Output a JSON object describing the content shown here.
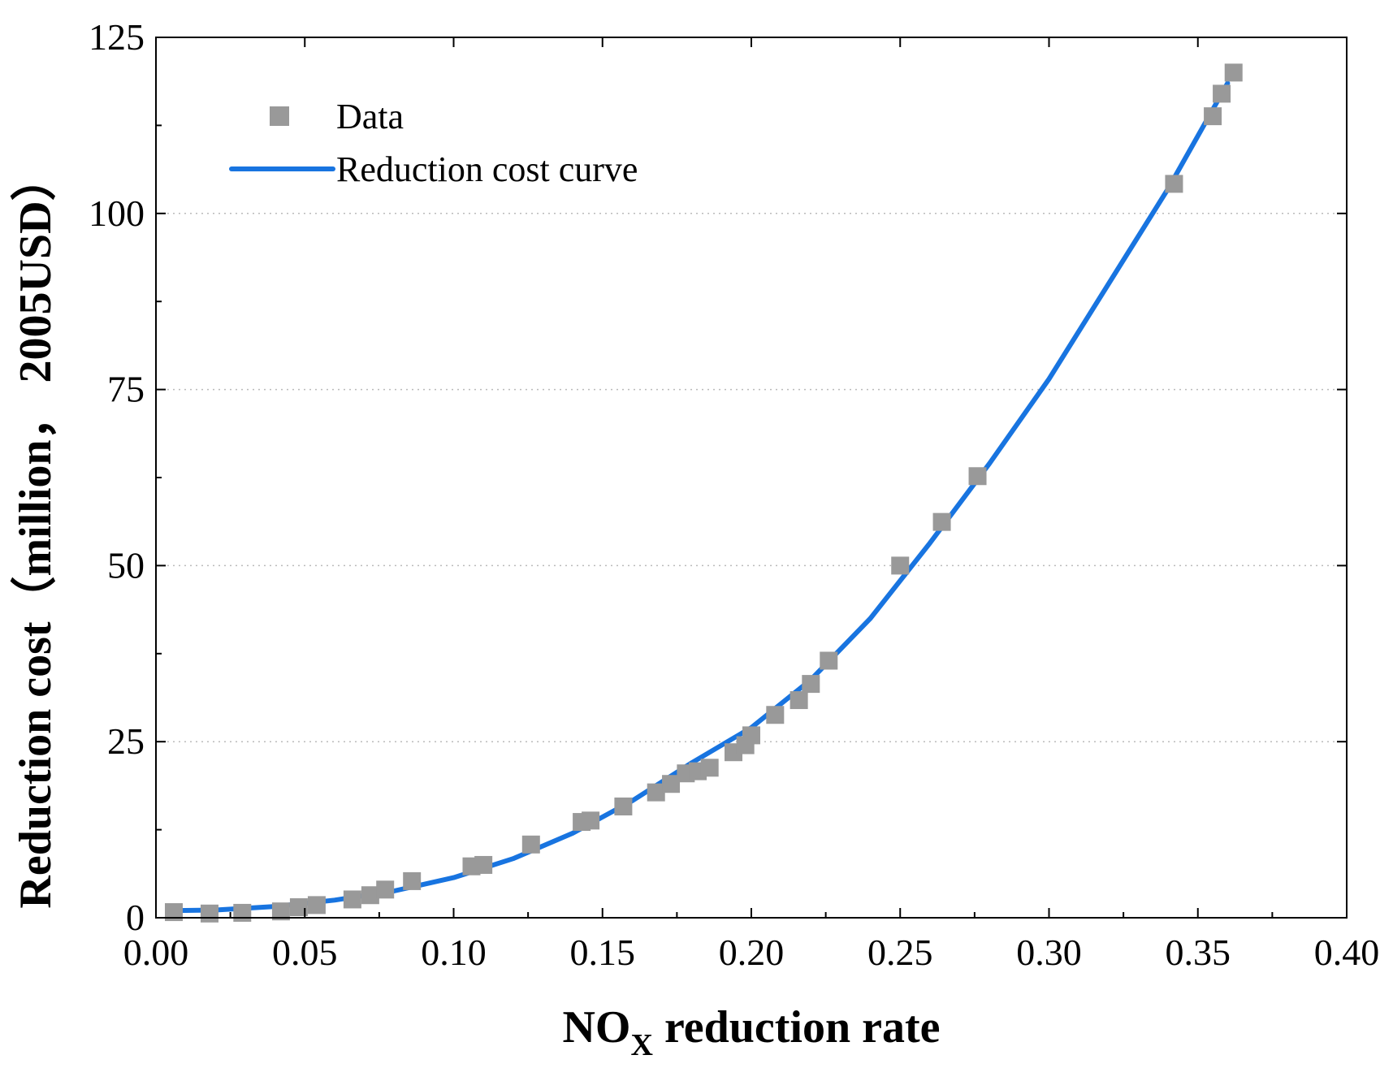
{
  "chart_data": {
    "type": "scatter",
    "title": "",
    "xlabel_main": "NO",
    "xlabel_sub": "X",
    "xlabel_rest": " reduction rate",
    "ylabel": "Reduction cost（million， 2005USD）",
    "xlim": [
      0.0,
      0.4
    ],
    "ylim": [
      0,
      125
    ],
    "xticks": [
      0.0,
      0.05,
      0.1,
      0.15,
      0.2,
      0.25,
      0.3,
      0.35,
      0.4
    ],
    "xtick_labels": [
      "0.00",
      "0.05",
      "0.10",
      "0.15",
      "0.20",
      "0.25",
      "0.30",
      "0.35",
      "0.40"
    ],
    "yticks": [
      0,
      25,
      50,
      75,
      100,
      125
    ],
    "ytick_labels": [
      "0",
      "25",
      "50",
      "75",
      "100",
      "125"
    ],
    "grid": "horizontal dotted",
    "legend_position": "top-left",
    "colors": {
      "data": "#999999",
      "curve": "#1874e0",
      "grid": "#bbbbbb"
    },
    "series": [
      {
        "name": "Data",
        "kind": "markers",
        "points": [
          [
            0.006,
            0.8
          ],
          [
            0.018,
            0.6
          ],
          [
            0.029,
            0.7
          ],
          [
            0.042,
            0.9
          ],
          [
            0.048,
            1.5
          ],
          [
            0.054,
            1.8
          ],
          [
            0.066,
            2.6
          ],
          [
            0.072,
            3.2
          ],
          [
            0.077,
            4.0
          ],
          [
            0.086,
            5.2
          ],
          [
            0.106,
            7.3
          ],
          [
            0.11,
            7.5
          ],
          [
            0.126,
            10.4
          ],
          [
            0.143,
            13.6
          ],
          [
            0.146,
            13.8
          ],
          [
            0.157,
            15.8
          ],
          [
            0.168,
            17.8
          ],
          [
            0.173,
            19.0
          ],
          [
            0.178,
            20.5
          ],
          [
            0.182,
            20.8
          ],
          [
            0.186,
            21.3
          ],
          [
            0.194,
            23.5
          ],
          [
            0.198,
            24.5
          ],
          [
            0.2,
            25.9
          ],
          [
            0.208,
            28.8
          ],
          [
            0.216,
            30.9
          ],
          [
            0.22,
            33.2
          ],
          [
            0.226,
            36.5
          ],
          [
            0.25,
            50.0
          ],
          [
            0.264,
            56.2
          ],
          [
            0.276,
            62.7
          ],
          [
            0.342,
            104.2
          ],
          [
            0.355,
            113.8
          ],
          [
            0.358,
            117.0
          ],
          [
            0.362,
            120.0
          ]
        ]
      },
      {
        "name": "Reduction cost curve",
        "kind": "line",
        "points": [
          [
            0.005,
            1.0
          ],
          [
            0.02,
            1.1
          ],
          [
            0.04,
            1.6
          ],
          [
            0.06,
            2.5
          ],
          [
            0.08,
            3.8
          ],
          [
            0.1,
            5.7
          ],
          [
            0.12,
            8.4
          ],
          [
            0.14,
            12.0
          ],
          [
            0.16,
            16.6
          ],
          [
            0.18,
            22.0
          ],
          [
            0.2,
            27.0
          ],
          [
            0.22,
            33.8
          ],
          [
            0.24,
            42.5
          ],
          [
            0.26,
            53.2
          ],
          [
            0.28,
            64.5
          ],
          [
            0.3,
            76.5
          ],
          [
            0.32,
            90.0
          ],
          [
            0.34,
            103.5
          ],
          [
            0.36,
            118.5
          ]
        ]
      }
    ]
  }
}
